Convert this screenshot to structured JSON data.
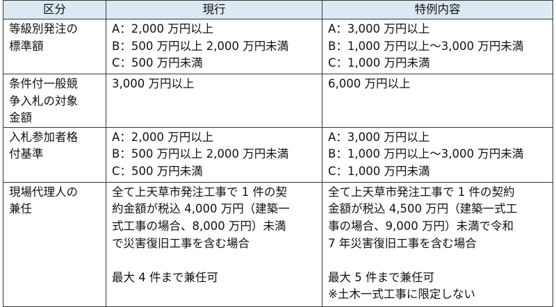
{
  "headers": [
    "区分",
    "現行",
    "特例内容"
  ],
  "rows": [
    {
      "category": [
        "等級別発注の",
        "標準額"
      ],
      "current": [
        "A：2,000 万円以上",
        "B：500 万円以上 2,000 万円未満",
        "C：500 万円未満"
      ],
      "special": [
        "A：3,000 万円以上",
        "B：1,000 万円以上～3,000 万円未満",
        "C：1,000 万円未満"
      ]
    },
    {
      "category": [
        "条件付一般競",
        "争入札の対象",
        "金額"
      ],
      "current": [
        "3,000 万円以上"
      ],
      "special": [
        "6,000 万円以上"
      ]
    },
    {
      "category": [
        "入札参加者格",
        "付基準"
      ],
      "current": [
        "A：2,000 万円以上",
        "B：500 万円以上 2,000 万円未満",
        "C：500 万円未満"
      ],
      "special": [
        "A：3,000 万円以上",
        "B：1,000 万円以上～3,000 万円未満",
        "C：1,000 万円未満"
      ]
    },
    {
      "category": [
        "現場代理人の",
        "兼任"
      ],
      "current": [
        "全て上天草市発注工事で 1 件の契",
        "約金額が税込 4,000 万円（建築一",
        "式工事の場合、8,000 万円）未満",
        "で災害復旧工事を含む場合",
        "",
        "最大 4 件まで兼任可"
      ],
      "special": [
        "全て上天草市発注工事で 1 件の契約",
        "金額が税込 4,500 万円（建築一式工",
        "事の場合、9,000 万円）未満で令和",
        "7 年災害復旧工事を含む場合",
        "",
        "最大 5 件まで兼任可",
        "※土木一式工事に限定しない"
      ]
    }
  ]
}
